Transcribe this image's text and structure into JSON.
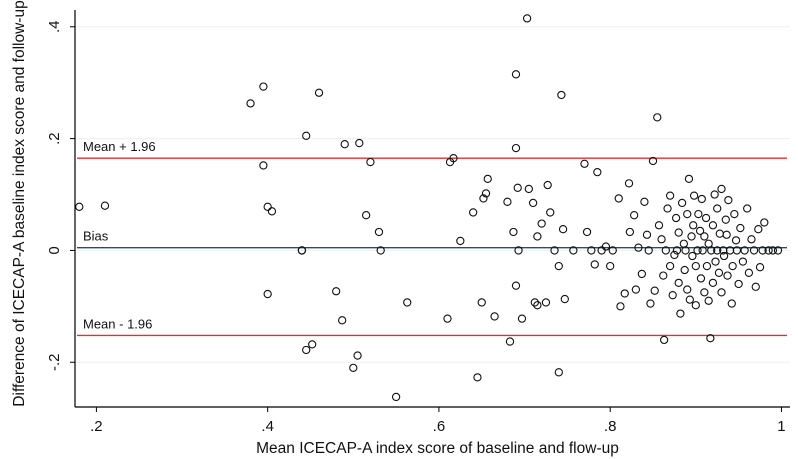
{
  "chart_data": {
    "type": "scatter",
    "title": "",
    "xlabel": "Mean ICECAP-A index score of baseline and flow-up",
    "ylabel": "Difference of ICECAP-A baseline index score and follow-up",
    "xlim": [
      0.175,
      1.01
    ],
    "ylim": [
      -0.28,
      0.43
    ],
    "x_ticks": [
      0.2,
      0.4,
      0.6,
      0.8,
      1.0
    ],
    "x_tick_labels": [
      ".2",
      ".4",
      ".6",
      ".8",
      "1"
    ],
    "y_ticks": [
      -0.2,
      0.0,
      0.2,
      0.4
    ],
    "y_tick_labels": [
      "-.2",
      "0",
      ".2",
      ".4"
    ],
    "grid": true,
    "reference_lines": [
      {
        "label": "Mean + 1.96",
        "y": 0.165,
        "color": "#e03030"
      },
      {
        "label": "Bias",
        "y": 0.005,
        "color": "#1f4e79"
      },
      {
        "label": "Mean - 1.96",
        "y": -0.152,
        "color": "#e03030"
      }
    ],
    "points": [
      [
        0.18,
        0.078
      ],
      [
        0.21,
        0.08
      ],
      [
        0.38,
        0.263
      ],
      [
        0.395,
        0.293
      ],
      [
        0.395,
        0.152
      ],
      [
        0.4,
        0.078
      ],
      [
        0.405,
        0.07
      ],
      [
        0.4,
        -0.078
      ],
      [
        0.44,
        0.0
      ],
      [
        0.44,
        0.0
      ],
      [
        0.445,
        0.205
      ],
      [
        0.445,
        -0.178
      ],
      [
        0.452,
        -0.168
      ],
      [
        0.46,
        0.282
      ],
      [
        0.48,
        -0.073
      ],
      [
        0.487,
        -0.125
      ],
      [
        0.49,
        0.19
      ],
      [
        0.5,
        -0.21
      ],
      [
        0.505,
        -0.188
      ],
      [
        0.507,
        0.192
      ],
      [
        0.515,
        0.063
      ],
      [
        0.52,
        0.158
      ],
      [
        0.53,
        0.033
      ],
      [
        0.532,
        0.0
      ],
      [
        0.55,
        -0.262
      ],
      [
        0.563,
        -0.093
      ],
      [
        0.61,
        -0.122
      ],
      [
        0.613,
        0.158
      ],
      [
        0.617,
        0.165
      ],
      [
        0.625,
        0.017
      ],
      [
        0.64,
        0.068
      ],
      [
        0.645,
        -0.227
      ],
      [
        0.65,
        -0.093
      ],
      [
        0.652,
        0.093
      ],
      [
        0.657,
        0.128
      ],
      [
        0.655,
        0.102
      ],
      [
        0.665,
        -0.118
      ],
      [
        0.68,
        0.087
      ],
      [
        0.683,
        -0.163
      ],
      [
        0.687,
        0.033
      ],
      [
        0.69,
        -0.063
      ],
      [
        0.69,
        0.183
      ],
      [
        0.69,
        0.315
      ],
      [
        0.692,
        0.112
      ],
      [
        0.693,
        0.0
      ],
      [
        0.697,
        -0.122
      ],
      [
        0.703,
        0.415
      ],
      [
        0.705,
        0.11
      ],
      [
        0.71,
        0.085
      ],
      [
        0.712,
        -0.093
      ],
      [
        0.715,
        0.025
      ],
      [
        0.715,
        -0.098
      ],
      [
        0.72,
        0.048
      ],
      [
        0.725,
        -0.093
      ],
      [
        0.727,
        0.117
      ],
      [
        0.73,
        0.068
      ],
      [
        0.735,
        0.0
      ],
      [
        0.74,
        -0.028
      ],
      [
        0.74,
        -0.218
      ],
      [
        0.743,
        0.278
      ],
      [
        0.745,
        0.038
      ],
      [
        0.747,
        -0.087
      ],
      [
        0.757,
        0.0
      ],
      [
        0.77,
        0.155
      ],
      [
        0.773,
        0.033
      ],
      [
        0.778,
        0.0
      ],
      [
        0.782,
        -0.025
      ],
      [
        0.785,
        0.14
      ],
      [
        0.79,
        0.0
      ],
      [
        0.795,
        0.007
      ],
      [
        0.8,
        -0.028
      ],
      [
        0.803,
        0.0
      ],
      [
        0.81,
        0.093
      ],
      [
        0.812,
        -0.1
      ],
      [
        0.817,
        -0.077
      ],
      [
        0.822,
        0.12
      ],
      [
        0.823,
        0.033
      ],
      [
        0.828,
        0.063
      ],
      [
        0.83,
        -0.07
      ],
      [
        0.833,
        0.005
      ],
      [
        0.837,
        -0.042
      ],
      [
        0.84,
        0.087
      ],
      [
        0.843,
        0.028
      ],
      [
        0.845,
        0.0
      ],
      [
        0.847,
        -0.095
      ],
      [
        0.85,
        0.16
      ],
      [
        0.852,
        -0.072
      ],
      [
        0.855,
        0.238
      ],
      [
        0.857,
        0.045
      ],
      [
        0.86,
        0.02
      ],
      [
        0.862,
        -0.045
      ],
      [
        0.863,
        -0.16
      ],
      [
        0.865,
        0.0
      ],
      [
        0.867,
        0.075
      ],
      [
        0.87,
        -0.028
      ],
      [
        0.87,
        0.098
      ],
      [
        0.873,
        -0.08
      ],
      [
        0.875,
        -0.008
      ],
      [
        0.877,
        0.058
      ],
      [
        0.878,
        0.0
      ],
      [
        0.88,
        0.032
      ],
      [
        0.88,
        -0.058
      ],
      [
        0.882,
        -0.113
      ],
      [
        0.884,
        0.085
      ],
      [
        0.886,
        0.012
      ],
      [
        0.887,
        -0.035
      ],
      [
        0.888,
        0.0
      ],
      [
        0.89,
        0.065
      ],
      [
        0.89,
        -0.07
      ],
      [
        0.892,
        0.128
      ],
      [
        0.893,
        -0.088
      ],
      [
        0.895,
        0.025
      ],
      [
        0.896,
        -0.01
      ],
      [
        0.897,
        0.045
      ],
      [
        0.898,
        0.098
      ],
      [
        0.9,
        -0.028
      ],
      [
        0.9,
        -0.098
      ],
      [
        0.902,
        0.0
      ],
      [
        0.903,
        0.065
      ],
      [
        0.905,
        0.035
      ],
      [
        0.906,
        -0.05
      ],
      [
        0.907,
        0.092
      ],
      [
        0.908,
        0.0
      ],
      [
        0.91,
        0.025
      ],
      [
        0.91,
        -0.075
      ],
      [
        0.912,
        0.058
      ],
      [
        0.913,
        -0.028
      ],
      [
        0.915,
        0.012
      ],
      [
        0.915,
        -0.09
      ],
      [
        0.917,
        -0.157
      ],
      [
        0.918,
        0.0
      ],
      [
        0.92,
        0.045
      ],
      [
        0.92,
        -0.058
      ],
      [
        0.922,
        0.1
      ],
      [
        0.923,
        -0.02
      ],
      [
        0.925,
        0.0
      ],
      [
        0.925,
        0.075
      ],
      [
        0.927,
        -0.04
      ],
      [
        0.928,
        0.03
      ],
      [
        0.93,
        -0.075
      ],
      [
        0.93,
        0.11
      ],
      [
        0.932,
        0.0
      ],
      [
        0.933,
        -0.01
      ],
      [
        0.935,
        0.055
      ],
      [
        0.936,
        0.028
      ],
      [
        0.937,
        -0.045
      ],
      [
        0.938,
        0.09
      ],
      [
        0.94,
        0.0
      ],
      [
        0.942,
        -0.095
      ],
      [
        0.943,
        -0.028
      ],
      [
        0.945,
        0.065
      ],
      [
        0.947,
        0.018
      ],
      [
        0.948,
        0.0
      ],
      [
        0.95,
        -0.06
      ],
      [
        0.952,
        0.04
      ],
      [
        0.955,
        -0.02
      ],
      [
        0.957,
        0.0
      ],
      [
        0.96,
        0.075
      ],
      [
        0.962,
        -0.04
      ],
      [
        0.965,
        0.02
      ],
      [
        0.968,
        0.0
      ],
      [
        0.97,
        -0.065
      ],
      [
        0.973,
        0.038
      ],
      [
        0.975,
        -0.03
      ],
      [
        0.978,
        0.0
      ],
      [
        0.98,
        0.05
      ],
      [
        0.985,
        0.0
      ],
      [
        0.99,
        0.0
      ],
      [
        0.996,
        0.0
      ]
    ]
  }
}
